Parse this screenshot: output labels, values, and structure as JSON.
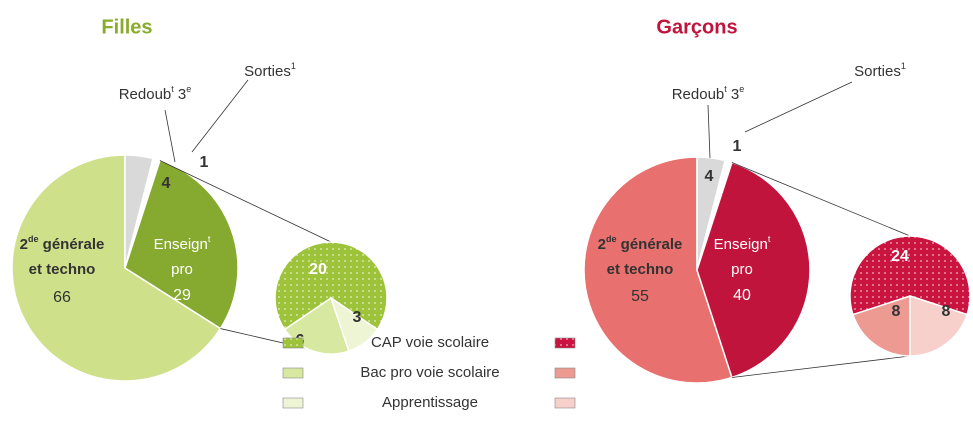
{
  "chart_data": [
    {
      "type": "pie-of-pie",
      "title": "Filles",
      "title_color": "#8aac2c",
      "categories": [
        [
          {
            "text": "2"
          },
          {
            "text": "de",
            "sup": true
          },
          {
            "text": " générale"
          },
          {
            "text": "et techno",
            "newline": true
          }
        ],
        [
          {
            "text": "Redoub"
          },
          {
            "text": "t",
            "sup": true
          },
          {
            "text": " 3"
          },
          {
            "text": "e",
            "sup": true
          }
        ],
        [
          {
            "text": "Sorties"
          },
          {
            "text": "1",
            "sup": true
          }
        ],
        [
          {
            "text": "Enseign"
          },
          {
            "text": "t",
            "sup": true
          },
          {
            "text": "pro",
            "newline": true
          }
        ]
      ],
      "values": [
        66,
        4,
        1,
        29
      ],
      "colors": [
        "#cfe08a",
        "#d9d9d9",
        "#ffffff",
        "#86a930"
      ],
      "sub_values": [
        6,
        20,
        3
      ],
      "sub_colors": [
        "#d7e8a0",
        "#9dc33b",
        "#eef5d5"
      ],
      "sub_dotted": [
        false,
        true,
        false
      ]
    },
    {
      "type": "pie-of-pie",
      "title": "Garçons",
      "title_color": "#c0143c",
      "categories": [
        [
          {
            "text": "2"
          },
          {
            "text": "de",
            "sup": true
          },
          {
            "text": " générale"
          },
          {
            "text": "et techno",
            "newline": true
          }
        ],
        [
          {
            "text": "Redoub"
          },
          {
            "text": "t",
            "sup": true
          },
          {
            "text": " 3"
          },
          {
            "text": "e",
            "sup": true
          }
        ],
        [
          {
            "text": "Sorties"
          },
          {
            "text": "1",
            "sup": true
          }
        ],
        [
          {
            "text": "Enseign"
          },
          {
            "text": "t",
            "sup": true
          },
          {
            "text": "pro",
            "newline": true
          }
        ]
      ],
      "values": [
        55,
        4,
        1,
        40
      ],
      "colors": [
        "#e8706e",
        "#d9d9d9",
        "#ffffff",
        "#c0143c"
      ],
      "sub_values": [
        8,
        24,
        8
      ],
      "sub_colors": [
        "#ec9a92",
        "#c8143e",
        "#f7d0cc"
      ],
      "sub_dotted": [
        false,
        true,
        false
      ]
    }
  ],
  "legend": [
    "CAP voie scolaire",
    "Bac pro voie scolaire",
    "Apprentissage"
  ]
}
